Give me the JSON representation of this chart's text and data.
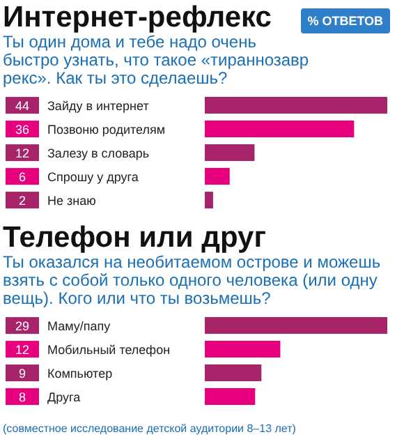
{
  "chart_data": [
    {
      "type": "bar",
      "orientation": "horizontal",
      "title": "Интернет-рефлекс",
      "subtitle": "Ты один дома и тебе надо очень быстро узнать, что такое «тираннозавр рекс». Как ты это сделаешь?",
      "categories": [
        "Зайду в интернет",
        "Позвоню родителям",
        "Залезу в словарь",
        "Спрошу у друга",
        "Не знаю"
      ],
      "values": [
        44,
        36,
        12,
        6,
        2
      ],
      "colors": [
        "#a8246a",
        "#e6007e",
        "#a8246a",
        "#e6007e",
        "#a8246a"
      ],
      "data_labels": true,
      "annotations": [
        "% ОТВЕТОВ"
      ]
    },
    {
      "type": "bar",
      "orientation": "horizontal",
      "title": "Телефон или друг",
      "subtitle": "Ты оказался на необитаемом острове и можешь взять с собой только одного человека (или одну вещь). Кого или что ты возьмешь?",
      "categories": [
        "Маму/папу",
        "Мобильный телефон",
        "Компьютер",
        "Друга"
      ],
      "values": [
        29,
        12,
        9,
        8
      ],
      "colors": [
        "#a8246a",
        "#e6007e",
        "#a8246a",
        "#e6007e"
      ],
      "data_labels": true,
      "annotations": [
        "(совместное исследование детской аудитории 8–13 лет)"
      ]
    }
  ]
}
